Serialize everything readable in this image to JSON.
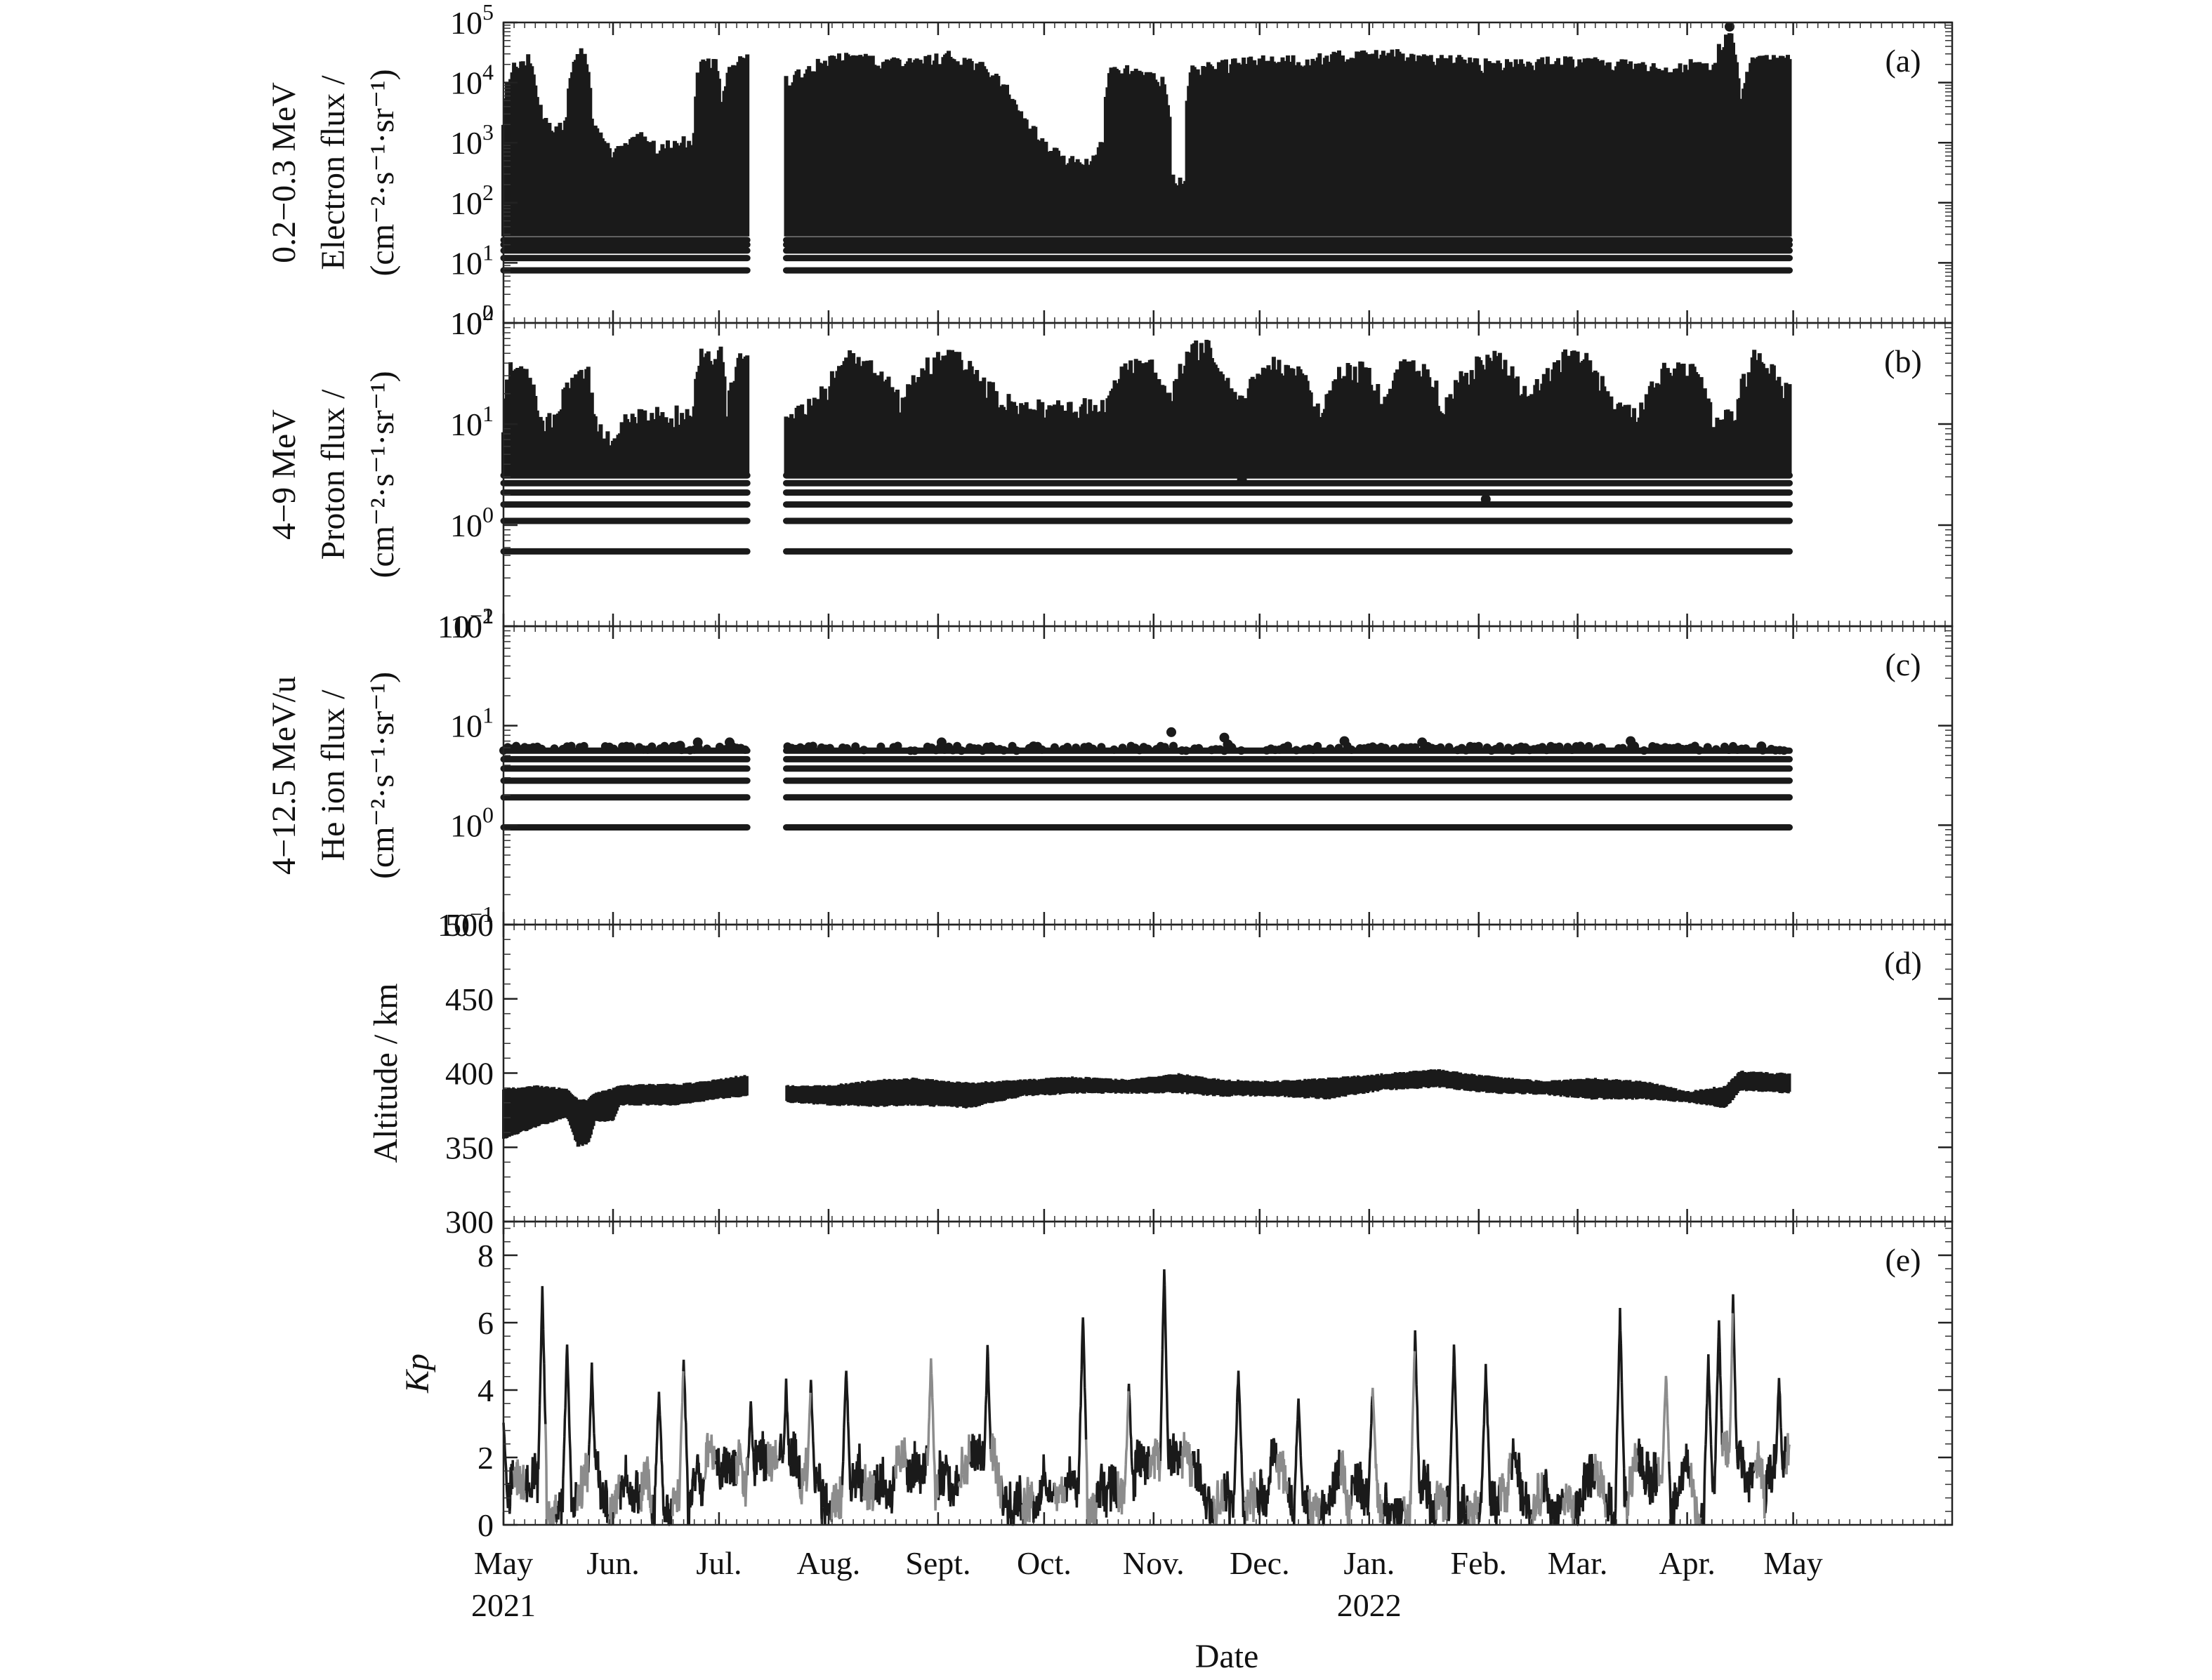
{
  "figure": {
    "x_axis_label": "Date",
    "month_labels": [
      "May",
      "Jun.",
      "Jul.",
      "Aug.",
      "Sept.",
      "Oct.",
      "Nov.",
      "Dec.",
      "Jan.",
      "Feb.",
      "Mar.",
      "Apr.",
      "May"
    ],
    "month_dates": [
      "2021-05-01",
      "2021-06-01",
      "2021-07-01",
      "2021-08-01",
      "2021-09-01",
      "2021-10-01",
      "2021-11-01",
      "2021-12-01",
      "2022-01-01",
      "2022-02-01",
      "2022-03-01",
      "2022-04-01",
      "2022-05-01"
    ],
    "year_labels": [
      {
        "date": "2021-05-01",
        "label": "2021"
      },
      {
        "date": "2022-01-01",
        "label": "2022"
      }
    ],
    "x_range": [
      "2021-05-01",
      "2022-06-15"
    ],
    "data_gap": [
      "2021-07-09",
      "2021-07-20"
    ],
    "ink_color": "#1a1a1a",
    "grey_color": "#8c8c8c"
  },
  "chart_data": [
    {
      "id": "a",
      "type": "scatter",
      "panel_label": "(a)",
      "energy_label": "0.2−0.3 MeV",
      "ylabel": "Electron flux /",
      "yunit": "(cm⁻²·s⁻¹·sr⁻¹)",
      "yscale": "log",
      "ylim": [
        1,
        100000
      ],
      "yticks": [
        {
          "v": 1,
          "base": "10",
          "exp": "0"
        },
        {
          "v": 10,
          "base": "10",
          "exp": "1"
        },
        {
          "v": 100,
          "base": "10",
          "exp": "2"
        },
        {
          "v": 1000,
          "base": "10",
          "exp": "3"
        },
        {
          "v": 10000,
          "base": "10",
          "exp": "4"
        },
        {
          "v": 100000,
          "base": "10",
          "exp": "5"
        }
      ],
      "floor": 30,
      "band_levels": [
        7.5,
        12,
        16,
        20,
        24
      ],
      "envelope": [
        [
          "2021-05-01",
          3000
        ],
        [
          "2021-05-03",
          20000
        ],
        [
          "2021-05-08",
          30000
        ],
        [
          "2021-05-11",
          5000
        ],
        [
          "2021-05-15",
          1500
        ],
        [
          "2021-05-19",
          3000
        ],
        [
          "2021-05-21",
          25000
        ],
        [
          "2021-05-24",
          45000
        ],
        [
          "2021-05-26",
          3000
        ],
        [
          "2021-05-29",
          1200
        ],
        [
          "2021-06-01",
          900
        ],
        [
          "2021-06-04",
          1000
        ],
        [
          "2021-06-09",
          1500
        ],
        [
          "2021-06-14",
          1000
        ],
        [
          "2021-06-19",
          1200
        ],
        [
          "2021-06-24",
          1500
        ],
        [
          "2021-06-26",
          28000
        ],
        [
          "2021-06-30",
          25000
        ],
        [
          "2021-07-02",
          2000
        ],
        [
          "2021-07-04",
          25000
        ],
        [
          "2021-07-08",
          32000
        ],
        [
          "2021-07-21",
          12000
        ],
        [
          "2021-07-28",
          25000
        ],
        [
          "2021-08-05",
          32000
        ],
        [
          "2021-08-15",
          30000
        ],
        [
          "2021-08-25",
          25000
        ],
        [
          "2021-09-05",
          35000
        ],
        [
          "2021-09-15",
          20000
        ],
        [
          "2021-09-20",
          10000
        ],
        [
          "2021-09-25",
          3000
        ],
        [
          "2021-10-01",
          1200
        ],
        [
          "2021-10-06",
          700
        ],
        [
          "2021-10-12",
          500
        ],
        [
          "2021-10-18",
          1200
        ],
        [
          "2021-10-20",
          20000
        ],
        [
          "2021-10-28",
          20000
        ],
        [
          "2021-11-04",
          12000
        ],
        [
          "2021-11-06",
          300
        ],
        [
          "2021-11-10",
          300
        ],
        [
          "2021-11-12",
          20000
        ],
        [
          "2021-11-22",
          25000
        ],
        [
          "2021-12-03",
          30000
        ],
        [
          "2021-12-15",
          30000
        ],
        [
          "2021-12-25",
          35000
        ],
        [
          "2022-01-05",
          40000
        ],
        [
          "2022-01-15",
          30000
        ],
        [
          "2022-01-25",
          30000
        ],
        [
          "2022-02-05",
          25000
        ],
        [
          "2022-02-15",
          25000
        ],
        [
          "2022-02-25",
          30000
        ],
        [
          "2022-03-05",
          30000
        ],
        [
          "2022-03-15",
          25000
        ],
        [
          "2022-03-25",
          20000
        ],
        [
          "2022-04-02",
          25000
        ],
        [
          "2022-04-08",
          20000
        ],
        [
          "2022-04-13",
          80000
        ],
        [
          "2022-04-16",
          2000
        ],
        [
          "2022-04-20",
          30000
        ],
        [
          "2022-04-30",
          30000
        ]
      ],
      "outliers": [
        [
          "2022-04-13",
          85000
        ]
      ]
    },
    {
      "id": "b",
      "type": "scatter",
      "panel_label": "(b)",
      "energy_label": "4−9 MeV",
      "ylabel": "Proton flux /",
      "yunit": "(cm⁻²·s⁻¹·sr⁻¹)",
      "yscale": "log",
      "ylim": [
        0.1,
        100
      ],
      "yticks": [
        {
          "v": 0.1,
          "base": "10",
          "exp": "−1"
        },
        {
          "v": 1,
          "base": "10",
          "exp": "0"
        },
        {
          "v": 10,
          "base": "10",
          "exp": "1"
        },
        {
          "v": 100,
          "base": "10",
          "exp": "2"
        }
      ],
      "floor": 3.5,
      "band_levels": [
        0.55,
        1.1,
        1.6,
        2.1,
        2.6,
        3.1
      ],
      "envelope": [
        [
          "2021-05-01",
          12
        ],
        [
          "2021-05-03",
          45
        ],
        [
          "2021-05-08",
          40
        ],
        [
          "2021-05-11",
          12
        ],
        [
          "2021-05-16",
          15
        ],
        [
          "2021-05-20",
          30
        ],
        [
          "2021-05-24",
          50
        ],
        [
          "2021-05-27",
          12
        ],
        [
          "2021-06-01",
          8
        ],
        [
          "2021-06-06",
          15
        ],
        [
          "2021-06-16",
          16
        ],
        [
          "2021-06-24",
          15
        ],
        [
          "2021-06-26",
          70
        ],
        [
          "2021-07-02",
          60
        ],
        [
          "2021-07-03",
          12
        ],
        [
          "2021-07-06",
          55
        ],
        [
          "2021-07-08",
          55
        ],
        [
          "2021-07-21",
          12
        ],
        [
          "2021-07-31",
          25
        ],
        [
          "2021-08-08",
          60
        ],
        [
          "2021-08-15",
          40
        ],
        [
          "2021-08-22",
          20
        ],
        [
          "2021-08-28",
          45
        ],
        [
          "2021-09-05",
          60
        ],
        [
          "2021-09-12",
          35
        ],
        [
          "2021-09-20",
          20
        ],
        [
          "2021-10-10",
          17
        ],
        [
          "2021-10-20",
          22
        ],
        [
          "2021-10-25",
          50
        ],
        [
          "2021-10-31",
          50
        ],
        [
          "2021-11-05",
          18
        ],
        [
          "2021-11-10",
          50
        ],
        [
          "2021-11-15",
          80
        ],
        [
          "2021-11-20",
          40
        ],
        [
          "2021-11-25",
          18
        ],
        [
          "2021-12-05",
          50
        ],
        [
          "2021-12-12",
          40
        ],
        [
          "2021-12-18",
          15
        ],
        [
          "2021-12-25",
          45
        ],
        [
          "2022-01-01",
          40
        ],
        [
          "2022-01-05",
          17
        ],
        [
          "2022-01-10",
          45
        ],
        [
          "2022-01-18",
          40
        ],
        [
          "2022-01-22",
          15
        ],
        [
          "2022-01-30",
          45
        ],
        [
          "2022-02-06",
          55
        ],
        [
          "2022-02-15",
          20
        ],
        [
          "2022-02-25",
          55
        ],
        [
          "2022-03-03",
          60
        ],
        [
          "2022-03-10",
          20
        ],
        [
          "2022-03-18",
          15
        ],
        [
          "2022-03-25",
          40
        ],
        [
          "2022-04-01",
          50
        ],
        [
          "2022-04-08",
          15
        ],
        [
          "2022-04-15",
          15
        ],
        [
          "2022-04-20",
          60
        ],
        [
          "2022-04-25",
          40
        ],
        [
          "2022-04-30",
          25
        ]
      ],
      "outliers": [
        [
          "2021-11-26",
          2.8
        ],
        [
          "2022-02-03",
          1.8
        ]
      ]
    },
    {
      "id": "c",
      "type": "scatter",
      "panel_label": "(c)",
      "energy_label": "4−12.5 MeV/u",
      "ylabel": "He ion flux /",
      "yunit": "(cm⁻²·s⁻¹·sr⁻¹)",
      "yscale": "log",
      "ylim": [
        0.1,
        100
      ],
      "yticks": [
        {
          "v": 0.1,
          "base": "10",
          "exp": "−1"
        },
        {
          "v": 1,
          "base": "10",
          "exp": "0"
        },
        {
          "v": 10,
          "base": "10",
          "exp": "1"
        },
        {
          "v": 100,
          "base": "10",
          "exp": "2"
        }
      ],
      "band_levels": [
        0.95,
        1.9,
        2.8,
        3.7,
        4.6,
        5.6
      ],
      "outliers": [
        [
          "2021-06-20",
          6.3
        ],
        [
          "2021-06-25",
          6.8
        ],
        [
          "2021-07-04",
          6.8
        ],
        [
          "2021-09-02",
          6.8
        ],
        [
          "2021-09-28",
          6.2
        ],
        [
          "2021-11-06",
          8.6
        ],
        [
          "2021-11-21",
          7.6
        ],
        [
          "2021-11-22",
          6.5
        ],
        [
          "2021-11-23",
          6.0
        ],
        [
          "2021-12-25",
          7.0
        ],
        [
          "2022-01-16",
          6.8
        ],
        [
          "2022-03-16",
          7.0
        ],
        [
          "2022-03-17",
          6.2
        ],
        [
          "2022-04-22",
          6.2
        ]
      ]
    },
    {
      "id": "d",
      "type": "scatter",
      "panel_label": "(d)",
      "ylabel": "Altitude / km",
      "yscale": "linear",
      "ylim": [
        300,
        500
      ],
      "yticks": [
        300,
        350,
        400,
        450,
        500
      ],
      "band": [
        [
          "2021-05-01",
          355,
          390
        ],
        [
          "2021-05-10",
          363,
          392
        ],
        [
          "2021-05-19",
          370,
          390
        ],
        [
          "2021-05-22",
          350,
          383
        ],
        [
          "2021-05-25",
          352,
          383
        ],
        [
          "2021-05-27",
          367,
          387
        ],
        [
          "2021-06-01",
          367,
          390
        ],
        [
          "2021-06-03",
          378,
          392
        ],
        [
          "2021-06-10",
          378,
          393
        ],
        [
          "2021-06-20",
          378,
          393
        ],
        [
          "2021-06-30",
          382,
          396
        ],
        [
          "2021-07-08",
          384,
          399
        ],
        [
          "2021-07-20",
          380,
          392
        ],
        [
          "2021-08-01",
          378,
          392
        ],
        [
          "2021-08-15",
          377,
          396
        ],
        [
          "2021-08-25",
          378,
          397
        ],
        [
          "2021-09-10",
          376,
          394
        ],
        [
          "2021-09-25",
          384,
          396
        ],
        [
          "2021-10-10",
          386,
          398
        ],
        [
          "2021-10-25",
          386,
          396
        ],
        [
          "2021-11-08",
          386,
          400
        ],
        [
          "2021-11-20",
          384,
          396
        ],
        [
          "2021-12-05",
          384,
          395
        ],
        [
          "2021-12-20",
          382,
          397
        ],
        [
          "2022-01-05",
          388,
          400
        ],
        [
          "2022-01-20",
          390,
          403
        ],
        [
          "2022-02-05",
          386,
          398
        ],
        [
          "2022-02-20",
          385,
          395
        ],
        [
          "2022-03-05",
          382,
          397
        ],
        [
          "2022-03-20",
          382,
          395
        ],
        [
          "2022-04-01",
          380,
          388
        ],
        [
          "2022-04-12",
          376,
          392
        ],
        [
          "2022-04-16",
          388,
          402
        ],
        [
          "2022-04-30",
          386,
          400
        ]
      ]
    },
    {
      "id": "e",
      "type": "line",
      "panel_label": "(e)",
      "ylabel": "Kp",
      "yscale": "linear",
      "ylim": [
        0,
        9
      ],
      "yticks": [
        0,
        2,
        4,
        6,
        8
      ],
      "peaks": [
        [
          "2021-05-01",
          3
        ],
        [
          "2021-05-12",
          7
        ],
        [
          "2021-05-19",
          5.3
        ],
        [
          "2021-05-26",
          4.7
        ],
        [
          "2021-06-14",
          4.0
        ],
        [
          "2021-06-21",
          5.0
        ],
        [
          "2021-07-10",
          3.7
        ],
        [
          "2021-07-20",
          4.2
        ],
        [
          "2021-07-27",
          4.3
        ],
        [
          "2021-08-06",
          4.7
        ],
        [
          "2021-08-30",
          5.0
        ],
        [
          "2021-09-15",
          5.3
        ],
        [
          "2021-10-12",
          6.3
        ],
        [
          "2021-10-25",
          4.2
        ],
        [
          "2021-11-04",
          7.7
        ],
        [
          "2021-11-25",
          4.7
        ],
        [
          "2021-12-12",
          3.7
        ],
        [
          "2022-01-02",
          4.2
        ],
        [
          "2022-01-14",
          5.7
        ],
        [
          "2022-01-25",
          5.3
        ],
        [
          "2022-02-03",
          4.7
        ],
        [
          "2022-03-13",
          6.3
        ],
        [
          "2022-03-26",
          4.5
        ],
        [
          "2022-04-07",
          5.0
        ],
        [
          "2022-04-10",
          6.0
        ],
        [
          "2022-04-14",
          6.7
        ],
        [
          "2022-04-27",
          4.5
        ]
      ]
    }
  ]
}
